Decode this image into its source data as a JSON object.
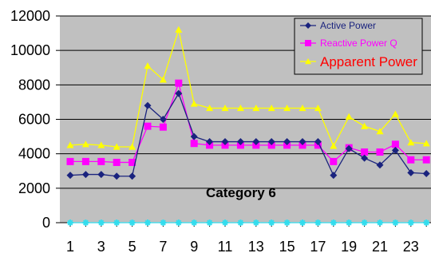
{
  "chart_data": {
    "type": "line",
    "x": [
      1,
      2,
      3,
      4,
      5,
      6,
      7,
      8,
      9,
      10,
      11,
      12,
      13,
      14,
      15,
      16,
      17,
      18,
      19,
      20,
      21,
      22,
      23,
      24
    ],
    "x_tick_labels": [
      "1",
      "3",
      "5",
      "7",
      "9",
      "11",
      "13",
      "15",
      "17",
      "19",
      "21",
      "23"
    ],
    "y_tick_labels": [
      "0",
      "2000",
      "4000",
      "6000",
      "8000",
      "10000",
      "12000"
    ],
    "ylim": [
      0,
      12000
    ],
    "grid": true,
    "legend_position": "top-right",
    "annotation": "Category 6",
    "series": [
      {
        "name": "Active Power",
        "color": "#1a237e",
        "marker": "diamond",
        "values": [
          2750,
          2800,
          2800,
          2700,
          2700,
          6800,
          6000,
          7500,
          5000,
          4700,
          4700,
          4700,
          4700,
          4700,
          4700,
          4700,
          4700,
          2750,
          4300,
          3750,
          3350,
          4200,
          2900,
          2850
        ]
      },
      {
        "name": "Reactive Power Q",
        "color": "#ff00ff",
        "marker": "square",
        "values": [
          3550,
          3550,
          3550,
          3500,
          3500,
          5600,
          5550,
          8100,
          4600,
          4500,
          4500,
          4500,
          4500,
          4500,
          4500,
          4500,
          4500,
          3550,
          4350,
          4100,
          4100,
          4550,
          3650,
          3650
        ]
      },
      {
        "name": "Apparent Power",
        "color": "#ffff00",
        "marker": "triangle",
        "values": [
          4500,
          4550,
          4500,
          4400,
          4400,
          9100,
          8300,
          11200,
          6900,
          6650,
          6650,
          6650,
          6650,
          6650,
          6650,
          6650,
          6650,
          4450,
          6150,
          5600,
          5300,
          6300,
          4650,
          4600
        ]
      },
      {
        "name": "",
        "color": "#33ddee",
        "marker": "star",
        "values": [
          0,
          0,
          0,
          0,
          0,
          0,
          0,
          0,
          0,
          0,
          0,
          0,
          0,
          0,
          0,
          0,
          0,
          0,
          0,
          0,
          0,
          0,
          0,
          0
        ]
      }
    ]
  }
}
